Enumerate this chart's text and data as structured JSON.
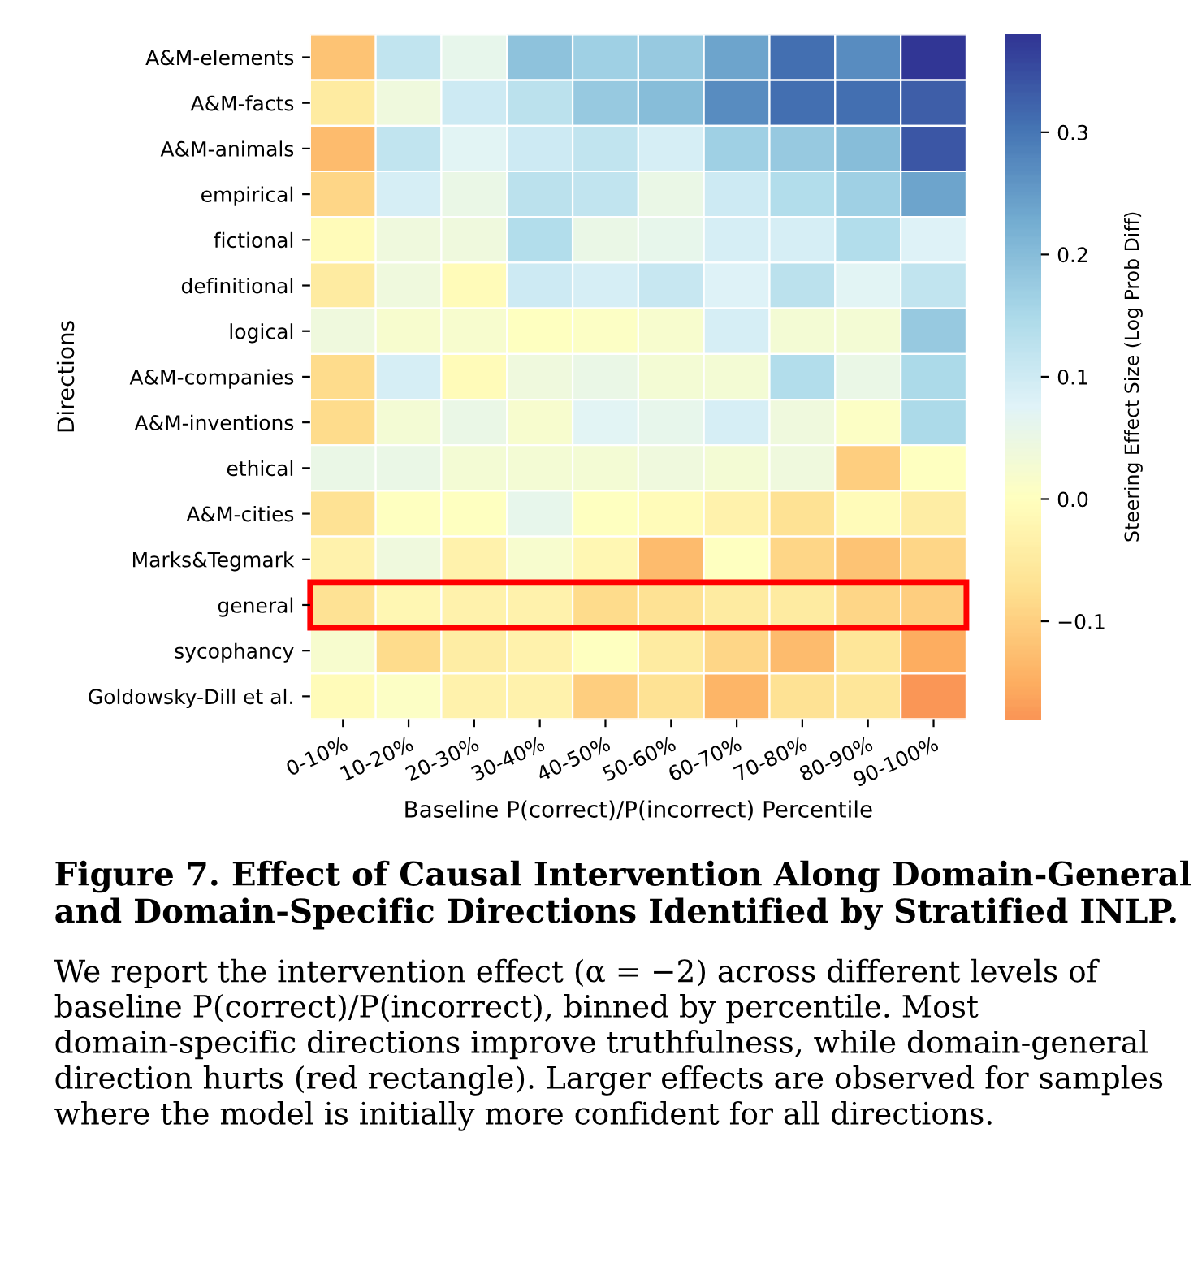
{
  "chart_data": {
    "type": "heatmap",
    "xlabel": "Baseline P(correct)/P(incorrect) Percentile",
    "ylabel": "Directions",
    "clabel": "Steering Effect Size (Log Prob Diff)",
    "categories": [
      "0-10%",
      "10-20%",
      "20-30%",
      "30-40%",
      "40-50%",
      "50-60%",
      "60-70%",
      "70-80%",
      "80-90%",
      "90-100%"
    ],
    "y_categories": [
      "A&M-elements",
      "A&M-facts",
      "A&M-animals",
      "empirical",
      "fictional",
      "definitional",
      "logical",
      "A&M-companies",
      "A&M-inventions",
      "ethical",
      "A&M-cities",
      "Marks&Tegmark",
      "general",
      "sycophancy",
      "Goldowsky-Dill et al."
    ],
    "cells": [
      [
        -0.12,
        0.12,
        0.06,
        0.19,
        0.17,
        0.18,
        0.24,
        0.31,
        0.27,
        0.38
      ],
      [
        -0.05,
        0.04,
        0.1,
        0.13,
        0.18,
        0.2,
        0.27,
        0.31,
        0.31,
        0.33
      ],
      [
        -0.13,
        0.12,
        0.07,
        0.1,
        0.12,
        0.09,
        0.17,
        0.18,
        0.2,
        0.34
      ],
      [
        -0.09,
        0.09,
        0.05,
        0.13,
        0.12,
        0.05,
        0.1,
        0.14,
        0.17,
        0.24
      ],
      [
        -0.01,
        0.04,
        0.04,
        0.14,
        0.05,
        0.06,
        0.09,
        0.09,
        0.14,
        0.08
      ],
      [
        -0.05,
        0.04,
        -0.01,
        0.1,
        0.09,
        0.11,
        0.08,
        0.13,
        0.07,
        0.12
      ],
      [
        0.04,
        0.02,
        0.02,
        0.0,
        0.01,
        0.02,
        0.09,
        0.03,
        0.03,
        0.18
      ],
      [
        -0.08,
        0.09,
        -0.01,
        0.04,
        0.05,
        0.03,
        0.03,
        0.14,
        0.05,
        0.15
      ],
      [
        -0.08,
        0.03,
        0.05,
        0.02,
        0.07,
        0.06,
        0.09,
        0.04,
        0.01,
        0.15
      ],
      [
        0.05,
        0.05,
        0.03,
        0.03,
        0.03,
        0.04,
        0.03,
        0.04,
        -0.1,
        0.0
      ],
      [
        -0.07,
        0.0,
        0.0,
        0.06,
        0.0,
        -0.01,
        -0.03,
        -0.07,
        -0.01,
        -0.04
      ],
      [
        -0.03,
        0.04,
        -0.03,
        0.02,
        -0.02,
        -0.13,
        0.0,
        -0.09,
        -0.12,
        -0.09
      ],
      [
        -0.07,
        -0.02,
        -0.03,
        -0.03,
        -0.08,
        -0.07,
        -0.05,
        -0.05,
        -0.09,
        -0.1
      ],
      [
        0.02,
        -0.08,
        -0.04,
        -0.03,
        0.0,
        -0.05,
        -0.09,
        -0.13,
        -0.06,
        -0.15
      ],
      [
        -0.01,
        0.01,
        -0.03,
        -0.03,
        -0.1,
        -0.07,
        -0.14,
        -0.07,
        -0.06,
        -0.18
      ]
    ],
    "clim": [
      -0.18,
      0.38
    ],
    "cticks": [
      {
        "value": -0.1,
        "label": "−0.1"
      },
      {
        "value": 0,
        "label": "0.0"
      },
      0.1,
      0.2,
      0.3
    ],
    "annotations": [
      "Figure 7. Effect of Causal Intervention Along Domain-General and Domain-Specific Directions Identified by Stratified INLP.",
      "We report the intervention effect (α = −2) across different levels of baseline P(correct)/P(incorrect), binned by percentile. Most domain-specific directions improve truthfulness, while domain-general direction hurts (red rectangle). Larger effects are observed for samples where the model is initially more confident for all directions."
    ]
  }
}
